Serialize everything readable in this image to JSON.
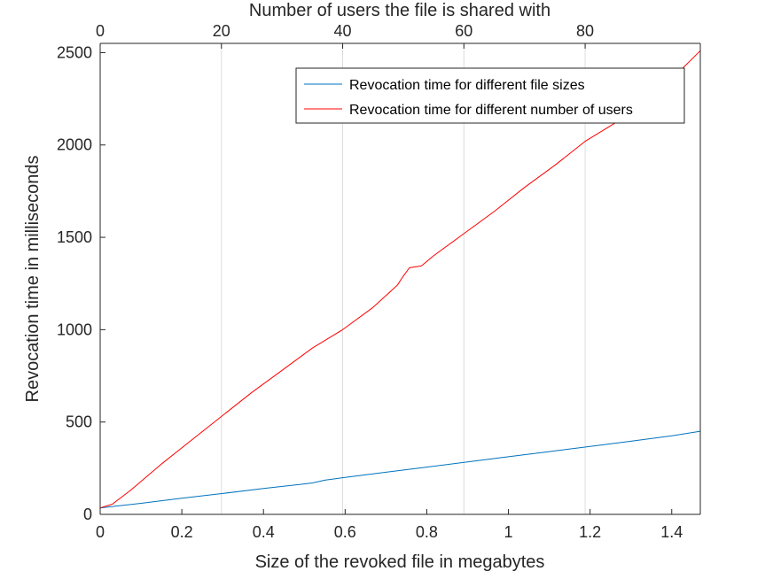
{
  "chart_data": {
    "type": "line",
    "xlabel_bottom": "Size of the revoked file in megabytes",
    "xlabel_top": "Number of users the file is shared with",
    "ylabel": "Revocation time in milliseconds",
    "xlim_bottom": [
      0,
      1.47
    ],
    "xlim_top": [
      0,
      99
    ],
    "ylim": [
      0,
      2550
    ],
    "xticks_bottom": [
      0,
      0.2,
      0.4,
      0.6,
      0.8,
      1,
      1.2,
      1.4
    ],
    "xtick_labels_bottom": [
      "0",
      "0.2",
      "0.4",
      "0.6",
      "0.8",
      "1",
      "1.2",
      "1.4"
    ],
    "xticks_top": [
      0,
      20,
      40,
      60,
      80
    ],
    "xtick_labels_top": [
      "0",
      "20",
      "40",
      "60",
      "80"
    ],
    "yticks": [
      0,
      500,
      1000,
      1500,
      2000,
      2500
    ],
    "ytick_labels": [
      "0",
      "500",
      "1000",
      "1500",
      "2000",
      "2500"
    ],
    "grid": "vertical",
    "legend_position": "top-right",
    "series": [
      {
        "name": "Revocation time for different file sizes",
        "axis": "bottom",
        "color": "#0072BD",
        "x": [
          0,
          0.1,
          0.2,
          0.3,
          0.4,
          0.5,
          0.52,
          0.55,
          0.6,
          0.7,
          0.8,
          0.9,
          1.0,
          1.1,
          1.2,
          1.3,
          1.4,
          1.47
        ],
        "y": [
          35,
          60,
          87,
          113,
          140,
          165,
          170,
          185,
          200,
          228,
          256,
          284,
          312,
          340,
          368,
          396,
          425,
          450
        ]
      },
      {
        "name": "Revocation time for different number of users",
        "axis": "top",
        "color": "#FF0000",
        "x": [
          0,
          2,
          5,
          10,
          15,
          20,
          25,
          30,
          35,
          40,
          45,
          49,
          50,
          51,
          52,
          53,
          55,
          60,
          65,
          70,
          75,
          80,
          85,
          90,
          95,
          99
        ],
        "y": [
          35,
          55,
          130,
          270,
          400,
          530,
          660,
          780,
          900,
          1000,
          1120,
          1240,
          1290,
          1335,
          1340,
          1345,
          1400,
          1520,
          1640,
          1770,
          1890,
          2020,
          2120,
          2270,
          2380,
          2510
        ]
      }
    ]
  }
}
